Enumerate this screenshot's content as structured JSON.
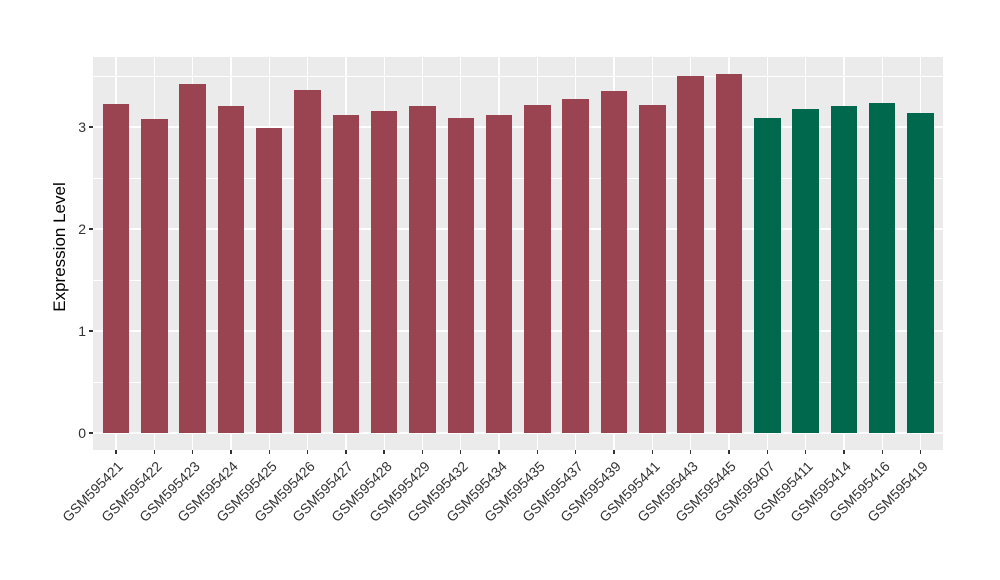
{
  "chart_data": {
    "type": "bar",
    "title": "",
    "xlabel": "",
    "ylabel": "Expression Level",
    "categories": [
      "GSM595421",
      "GSM595422",
      "GSM595423",
      "GSM595424",
      "GSM595425",
      "GSM595426",
      "GSM595427",
      "GSM595428",
      "GSM595429",
      "GSM595432",
      "GSM595434",
      "GSM595435",
      "GSM595437",
      "GSM595439",
      "GSM595441",
      "GSM595443",
      "GSM595445",
      "GSM595407",
      "GSM595411",
      "GSM595414",
      "GSM595416",
      "GSM595419"
    ],
    "values": [
      3.23,
      3.08,
      3.42,
      3.21,
      2.99,
      3.36,
      3.12,
      3.16,
      3.21,
      3.09,
      3.12,
      3.22,
      3.27,
      3.35,
      3.22,
      3.5,
      3.52,
      3.09,
      3.18,
      3.21,
      3.24,
      3.14
    ],
    "bar_groups": [
      "group1",
      "group1",
      "group1",
      "group1",
      "group1",
      "group1",
      "group1",
      "group1",
      "group1",
      "group1",
      "group1",
      "group1",
      "group1",
      "group1",
      "group1",
      "group1",
      "group1",
      "group2",
      "group2",
      "group2",
      "group2",
      "group2"
    ],
    "group_colors": {
      "group1": "#9B4451",
      "group2": "#00684D"
    },
    "y_ticks": [
      0,
      1,
      2,
      3
    ],
    "y_minor_ticks": [
      0.5,
      1.5,
      2.5,
      3.5
    ],
    "ylim": [
      0,
      3.69
    ],
    "grid": true,
    "legend_position": "none",
    "panel_background": "#EBEBEB",
    "gridline_color": "#FFFFFF",
    "axis_text_color": "#333333",
    "axis_title_color": "#000000"
  }
}
